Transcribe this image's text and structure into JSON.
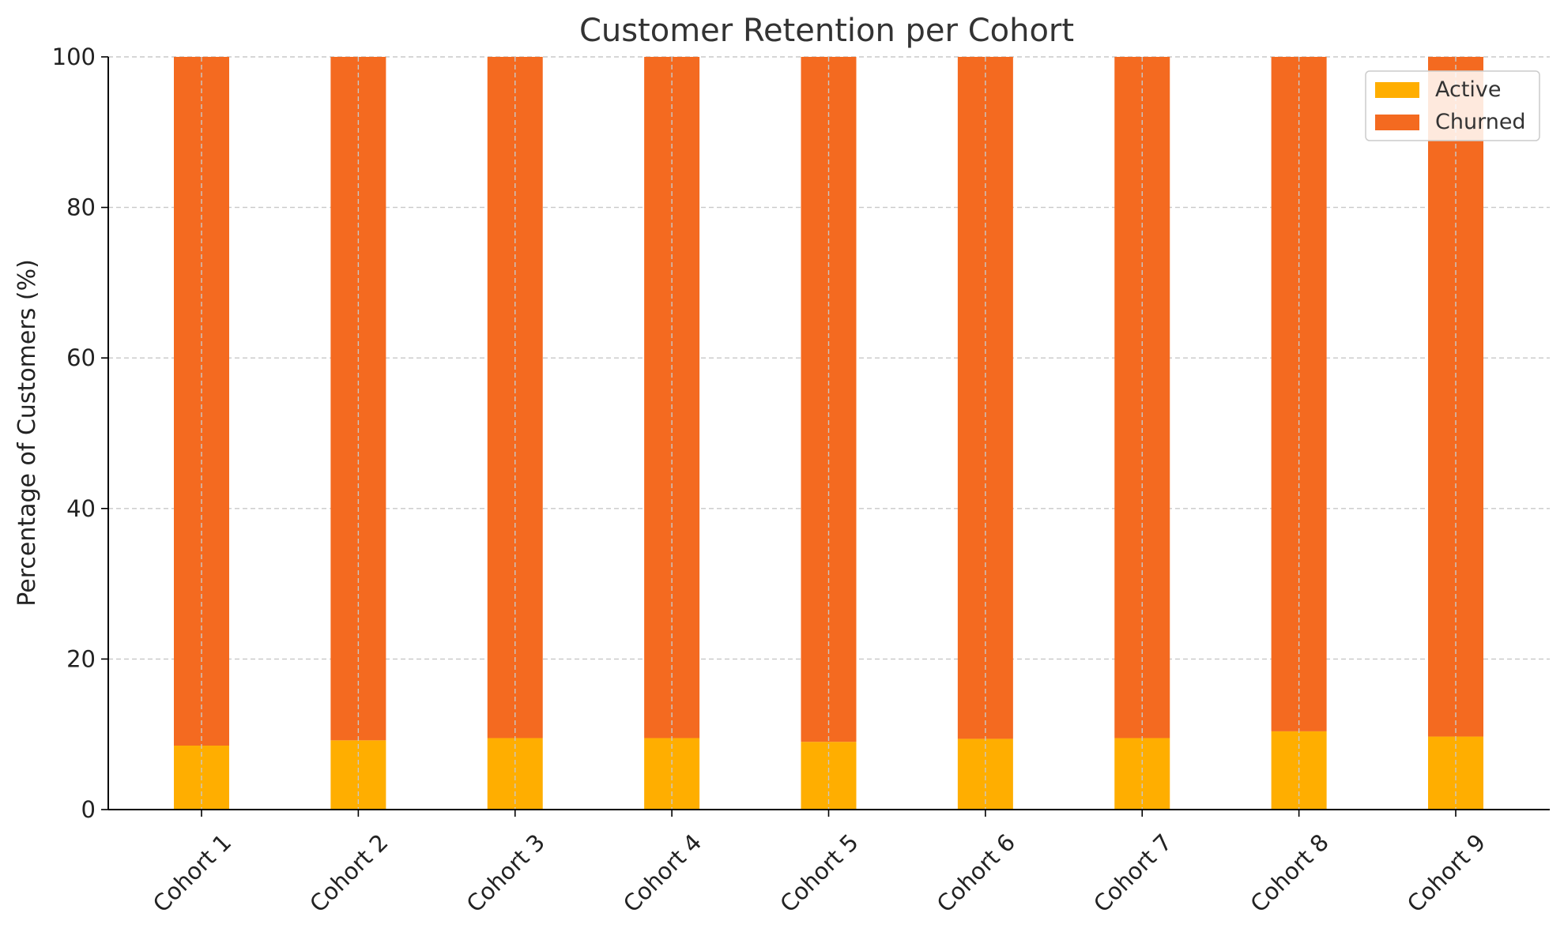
{
  "chart_data": {
    "type": "bar",
    "stacked": true,
    "title": "Customer Retention per Cohort",
    "xlabel": "",
    "ylabel": "Percentage of Customers (%)",
    "ylim": [
      0,
      100
    ],
    "yticks": [
      0,
      20,
      40,
      60,
      80,
      100
    ],
    "categories": [
      "Cohort 1",
      "Cohort 2",
      "Cohort 3",
      "Cohort 4",
      "Cohort 5",
      "Cohort 6",
      "Cohort 7",
      "Cohort 8",
      "Cohort 9"
    ],
    "series": [
      {
        "name": "Active",
        "color": "#FFAE00",
        "values": [
          8.5,
          9.2,
          9.5,
          9.5,
          9.0,
          9.4,
          9.5,
          10.4,
          9.7
        ]
      },
      {
        "name": "Churned",
        "color": "#F46A20",
        "values": [
          91.5,
          90.8,
          90.5,
          90.5,
          91.0,
          90.6,
          90.5,
          89.6,
          90.3
        ]
      }
    ],
    "grid": true,
    "legend_position": "top-right"
  }
}
